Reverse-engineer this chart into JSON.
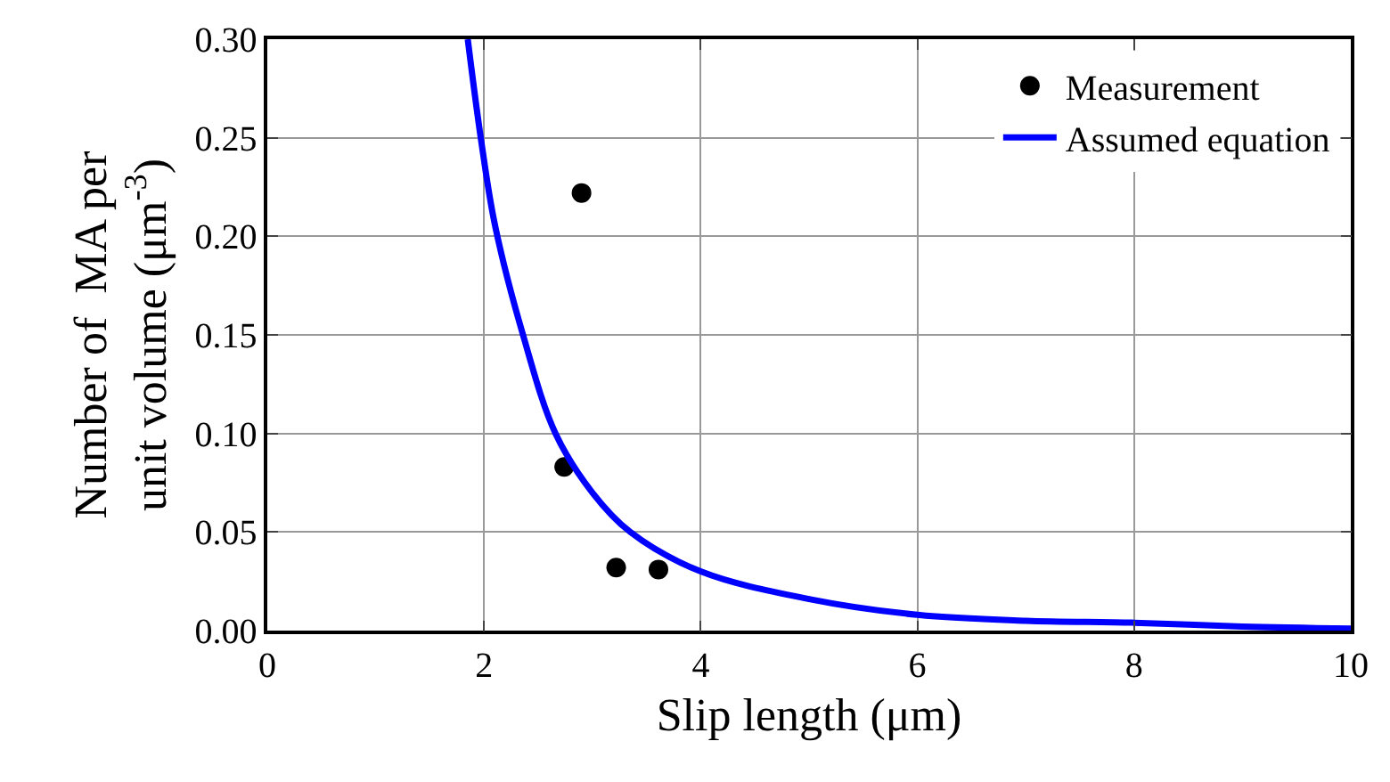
{
  "chart_data": {
    "type": "scatter",
    "xlabel": "Slip length (μm)",
    "ylabel": "Number of  MA per\nunit volume (μm$^{-3}$)",
    "xlim": [
      0,
      10
    ],
    "xticks": [
      0,
      2,
      4,
      6,
      8,
      10
    ],
    "ylim": [
      0,
      0.3
    ],
    "yticks": [
      {
        "value": 0,
        "label": "0.00"
      },
      {
        "value": 0.05,
        "label": "0.05"
      },
      {
        "value": 0.1,
        "label": "0.10"
      },
      {
        "value": 0.15,
        "label": "0.15"
      },
      {
        "value": 0.2,
        "label": "0.20"
      },
      {
        "value": 0.25,
        "label": "0.25"
      },
      {
        "value": 0.3,
        "label": "0.30"
      }
    ],
    "grid": true,
    "legend": "top right",
    "series": [
      {
        "name": "Measurement",
        "marker": "circle",
        "color": "#000000",
        "x": [
          2.9,
          2.74,
          3.22,
          3.61
        ],
        "values": [
          0.222,
          0.083,
          0.032,
          0.031
        ]
      },
      {
        "name": "Assumed equation",
        "type": "line",
        "marker": "none",
        "line_style": "solid",
        "color": "#0000ff",
        "x": [
          1.85,
          1.97,
          2.1,
          2.36,
          2.66,
          3.0,
          3.35,
          4,
          5,
          6,
          7,
          8,
          9,
          10
        ],
        "values": [
          0.3,
          0.25,
          0.206,
          0.15,
          0.1,
          0.07,
          0.05,
          0.03,
          0.016,
          0.008,
          0.005,
          0.004,
          0.002,
          0.001
        ]
      }
    ]
  }
}
